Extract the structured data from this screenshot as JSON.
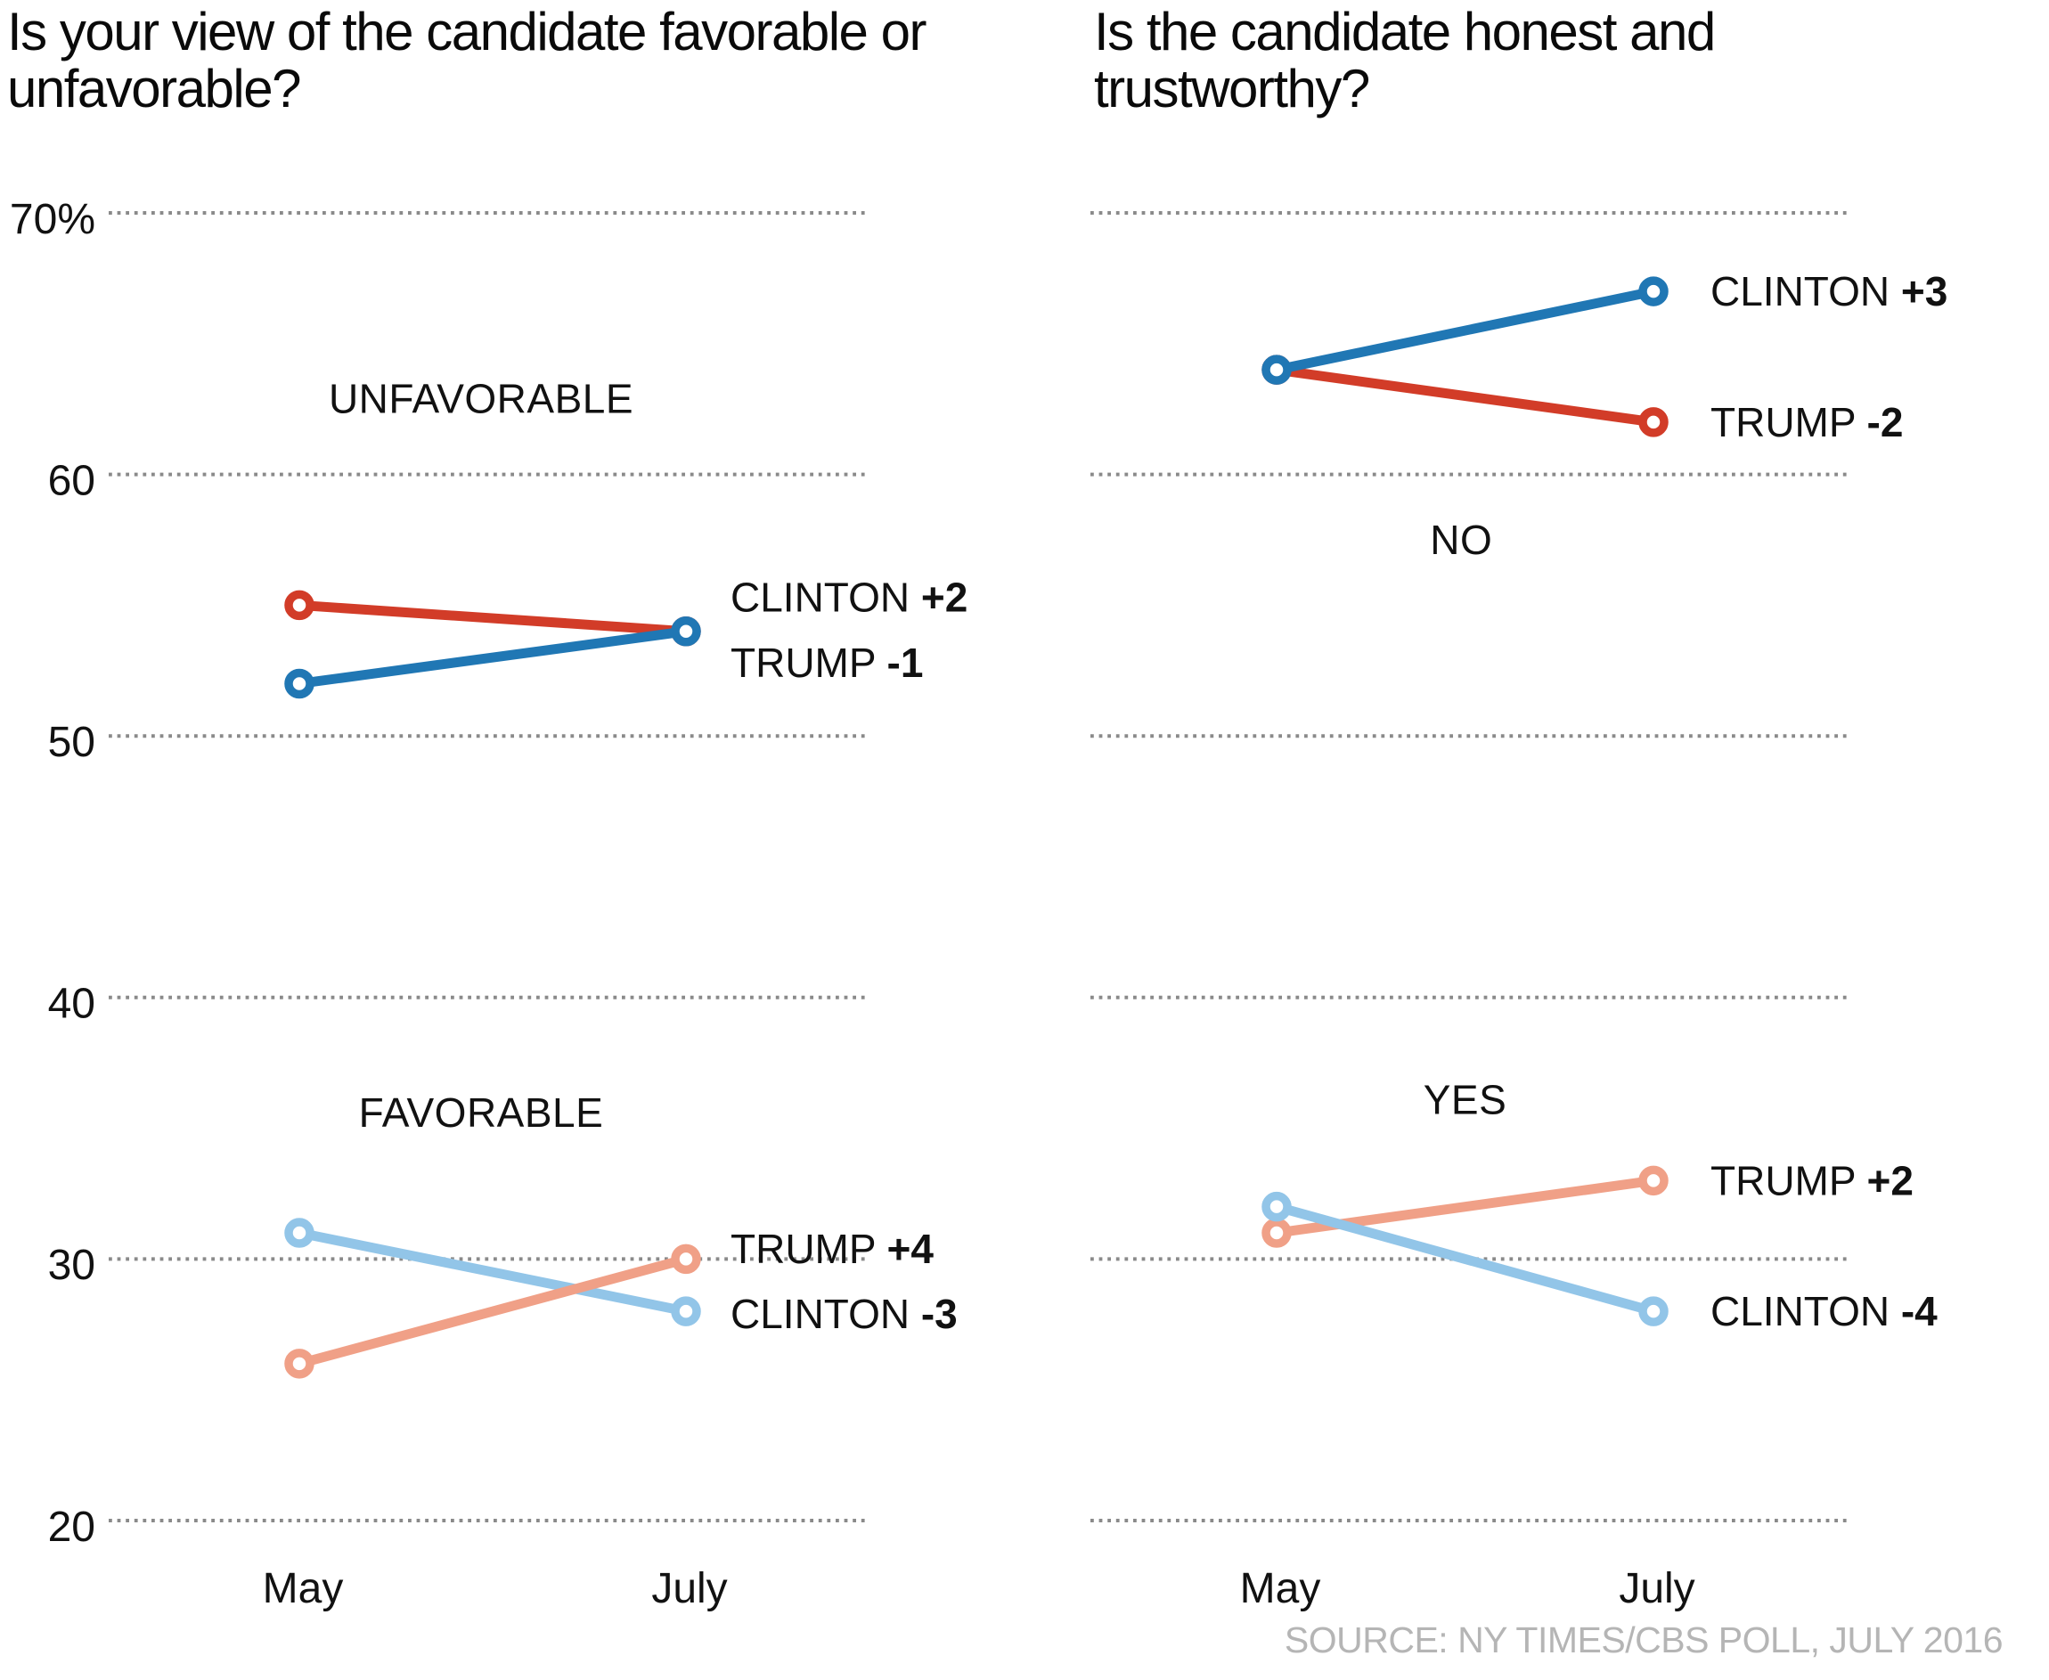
{
  "page": {
    "source_note": "SOURCE: NY TIMES/CBS POLL, JULY 2016"
  },
  "colors": {
    "clinton_dark": "#2077b4",
    "trump_dark": "#d23c28",
    "clinton_light": "#92c5e8",
    "trump_light": "#f0a087",
    "gridline": "#8a8a8a",
    "text": "#111111",
    "source": "#b5b5b5"
  },
  "chart_data": [
    {
      "type": "line",
      "title": "Is your view of the candidate favorable or unfavorable?",
      "x": [
        "May",
        "July"
      ],
      "ylim": [
        20,
        70
      ],
      "grid": true,
      "y_ticks": [
        {
          "value": 70,
          "label": "70%"
        },
        {
          "value": 60,
          "label": "60"
        },
        {
          "value": 50,
          "label": "50"
        },
        {
          "value": 40,
          "label": "40"
        },
        {
          "value": 30,
          "label": "30"
        },
        {
          "value": 20,
          "label": "20"
        }
      ],
      "show_tick_labels": true,
      "groups": [
        {
          "label": "UNFAVORABLE",
          "label_pos": {
            "x_frac": 0.47,
            "value": 62.9
          },
          "series": [
            {
              "name": "TRUMP",
              "delta": "-1",
              "color_key": "trump_dark",
              "values": [
                55,
                54
              ],
              "label_value": 52.8
            },
            {
              "name": "CLINTON",
              "delta": "+2",
              "color_key": "clinton_dark",
              "values": [
                52,
                54
              ],
              "label_value": 55.3
            }
          ]
        },
        {
          "label": "FAVORABLE",
          "label_pos": {
            "x_frac": 0.47,
            "value": 35.6
          },
          "series": [
            {
              "name": "CLINTON",
              "delta": "-3",
              "color_key": "clinton_light",
              "values": [
                31,
                28
              ],
              "label_value": 27.9
            },
            {
              "name": "TRUMP",
              "delta": "+4",
              "color_key": "trump_light",
              "values": [
                26,
                30
              ],
              "label_value": 30.4
            }
          ]
        }
      ]
    },
    {
      "type": "line",
      "title": "Is the candidate honest and trustworthy?",
      "x": [
        "May",
        "July"
      ],
      "ylim": [
        20,
        70
      ],
      "grid": true,
      "y_ticks": [
        {
          "value": 70,
          "label": ""
        },
        {
          "value": 60,
          "label": ""
        },
        {
          "value": 50,
          "label": ""
        },
        {
          "value": 40,
          "label": ""
        },
        {
          "value": 30,
          "label": ""
        },
        {
          "value": 20,
          "label": ""
        }
      ],
      "show_tick_labels": false,
      "groups": [
        {
          "label": "NO",
          "label_pos": {
            "x_frac": 0.49,
            "value": 57.5
          },
          "series": [
            {
              "name": "TRUMP",
              "delta": "-2",
              "color_key": "trump_dark",
              "values": [
                64,
                62
              ],
              "label_value": 62
            },
            {
              "name": "CLINTON",
              "delta": "+3",
              "color_key": "clinton_dark",
              "values": [
                64,
                67
              ],
              "label_value": 67
            }
          ]
        },
        {
          "label": "YES",
          "label_pos": {
            "x_frac": 0.5,
            "value": 36.1
          },
          "series": [
            {
              "name": "TRUMP",
              "delta": "+2",
              "color_key": "trump_light",
              "values": [
                31,
                33
              ],
              "label_value": 33
            },
            {
              "name": "CLINTON",
              "delta": "-4",
              "color_key": "clinton_light",
              "values": [
                32,
                28
              ],
              "label_value": 28
            }
          ]
        }
      ]
    }
  ]
}
